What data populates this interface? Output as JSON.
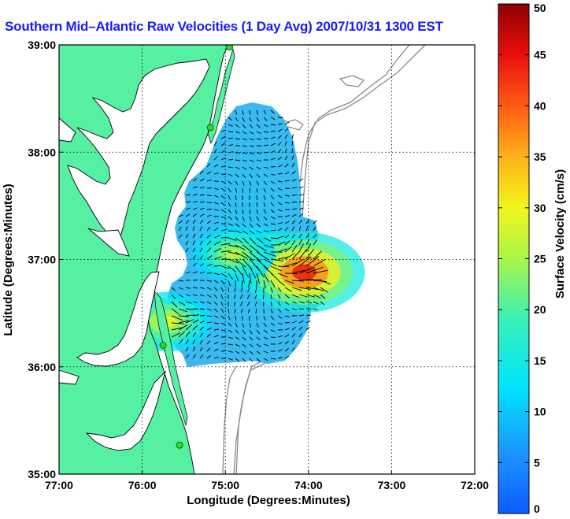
{
  "chart_data": {
    "type": "heatmap",
    "title": "Southern Mid–Atlantic Raw Velocities (1 Day Avg) 2007/10/31 1300 EST",
    "xlabel": "Longitude (Degrees:Minutes)",
    "ylabel": "Latitude (Degrees:Minutes)",
    "x_ticks": [
      "77:00",
      "76:00",
      "75:00",
      "74:00",
      "73:00",
      "72:00"
    ],
    "y_ticks": [
      "39:00",
      "38:00",
      "37:00",
      "36:00",
      "35:00"
    ],
    "xlim": [
      -77,
      -72
    ],
    "ylim": [
      35,
      39
    ],
    "grid": true,
    "colorbar": {
      "label": "Surface Velocity (cm/s)",
      "range": [
        0,
        50
      ],
      "ticks": [
        "0",
        "5",
        "10",
        "15",
        "20",
        "25",
        "30",
        "35",
        "40",
        "45",
        "50"
      ],
      "colormap": "jet"
    },
    "velocity_hotspots": [
      {
        "lon": -74.55,
        "lat": 37.0,
        "speed": 33
      },
      {
        "lon": -74.05,
        "lat": 36.88,
        "speed": 45
      },
      {
        "lon": -74.9,
        "lat": 37.05,
        "speed": 27
      },
      {
        "lon": -75.7,
        "lat": 36.42,
        "speed": 30
      }
    ],
    "background_speed": 8,
    "land_color": "#55f0a2",
    "station_markers": [
      {
        "lon": -74.95,
        "lat": 38.98
      },
      {
        "lon": -75.18,
        "lat": 38.23
      },
      {
        "lon": -75.75,
        "lat": 36.2
      },
      {
        "lon": -75.55,
        "lat": 35.27
      }
    ]
  }
}
